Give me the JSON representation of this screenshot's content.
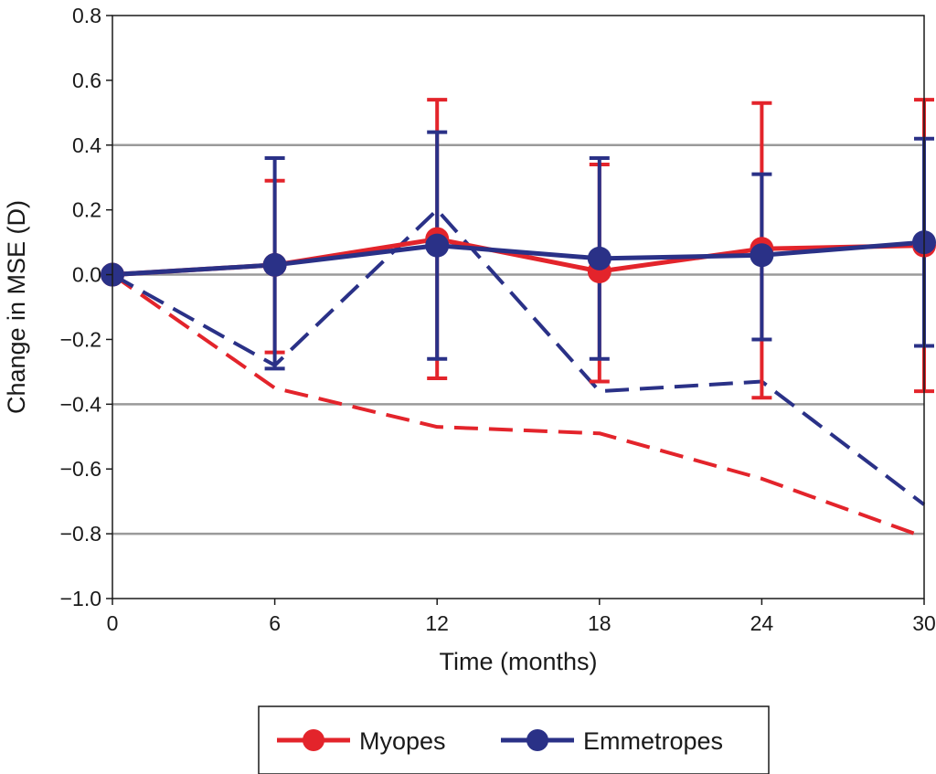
{
  "chart_data": {
    "type": "line",
    "title": "",
    "xlabel": "Time (months)",
    "ylabel": "Change in MSE (D)",
    "xlim": [
      0,
      30
    ],
    "ylim": [
      -1.0,
      0.8
    ],
    "x_ticks": [
      0,
      6,
      12,
      18,
      24,
      30
    ],
    "x_tick_labels": [
      "0",
      "6",
      "12",
      "18",
      "24",
      "30"
    ],
    "y_ticks": [
      0.8,
      0.6,
      0.4,
      0.2,
      0.0,
      -0.2,
      -0.4,
      -0.6,
      -0.8,
      -1.0
    ],
    "y_tick_labels": [
      "0.8",
      "0.6",
      "0.4",
      "0.2",
      "0.0",
      "−0.2",
      "−0.4",
      "−0.6",
      "−0.8",
      "−1.0"
    ],
    "gridlines_y": [
      0.4,
      0.0,
      -0.4,
      -0.8
    ],
    "grid": "horizontal at 0.4, 0.0, -0.4, -0.8",
    "legend_position": "bottom-center",
    "series": [
      {
        "name": "Myopes",
        "color": "#e3242b",
        "style": "solid-markers",
        "x": [
          0,
          6,
          12,
          18,
          24,
          30
        ],
        "y": [
          0.0,
          0.03,
          0.11,
          0.01,
          0.08,
          0.09
        ],
        "error_low": [
          0.0,
          -0.24,
          -0.32,
          -0.33,
          -0.38,
          -0.36
        ],
        "error_high": [
          0.0,
          0.29,
          0.54,
          0.34,
          0.53,
          0.54
        ]
      },
      {
        "name": "Emmetropes",
        "color": "#2a3187",
        "style": "solid-markers",
        "x": [
          0,
          6,
          12,
          18,
          24,
          30
        ],
        "y": [
          0.0,
          0.03,
          0.09,
          0.05,
          0.06,
          0.1
        ],
        "error_low": [
          0.0,
          -0.29,
          -0.26,
          -0.26,
          -0.2,
          -0.22
        ],
        "error_high": [
          0.0,
          0.36,
          0.44,
          0.36,
          0.31,
          0.42
        ]
      },
      {
        "name": "",
        "color": "#e3242b",
        "style": "dashed",
        "x": [
          0,
          6,
          12,
          18,
          24,
          30
        ],
        "y": [
          0.0,
          -0.35,
          -0.47,
          -0.49,
          -0.63,
          -0.81
        ]
      },
      {
        "name": "",
        "color": "#2a3187",
        "style": "dashed",
        "x": [
          0,
          6,
          12,
          18,
          24,
          30
        ],
        "y": [
          0.0,
          -0.28,
          0.2,
          -0.36,
          -0.33,
          -0.71
        ]
      }
    ],
    "legend": [
      {
        "label": "Myopes",
        "color": "#e3242b"
      },
      {
        "label": "Emmetropes",
        "color": "#2a3187"
      }
    ]
  }
}
